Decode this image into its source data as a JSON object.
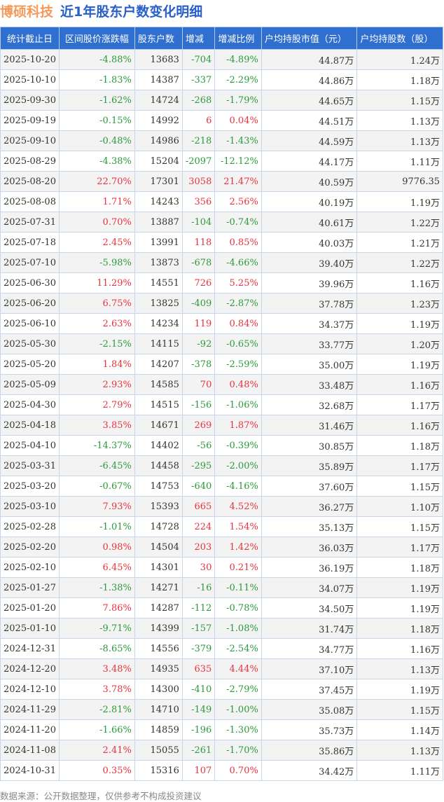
{
  "title": {
    "company": "博硕科技",
    "subtitle": "近1年股东户数变化明细"
  },
  "colors": {
    "positive": "#e8323c",
    "negative": "#2a9a3a",
    "header": "#2f6fd0",
    "company": "#f39a5a",
    "subtitle": "#2860c8"
  },
  "columns": [
    "统计截止日",
    "区间股价涨跌幅",
    "股东户数",
    "增减",
    "增减比例",
    "户均持股市值（元）",
    "户均持股数（股）"
  ],
  "rows": [
    [
      "2025-10-20",
      "-4.88%",
      "13683",
      "-704",
      "-4.89%",
      "44.87万",
      "1.24万"
    ],
    [
      "2025-10-10",
      "-1.83%",
      "14387",
      "-337",
      "-2.29%",
      "44.86万",
      "1.18万"
    ],
    [
      "2025-09-30",
      "-1.62%",
      "14724",
      "-268",
      "-1.79%",
      "44.65万",
      "1.15万"
    ],
    [
      "2025-09-19",
      "-0.15%",
      "14992",
      "6",
      "0.04%",
      "44.51万",
      "1.13万"
    ],
    [
      "2025-09-10",
      "-0.48%",
      "14986",
      "-218",
      "-1.43%",
      "44.59万",
      "1.13万"
    ],
    [
      "2025-08-29",
      "-4.38%",
      "15204",
      "-2097",
      "-12.12%",
      "44.17万",
      "1.11万"
    ],
    [
      "2025-08-20",
      "22.70%",
      "17301",
      "3058",
      "21.47%",
      "40.59万",
      "9776.35"
    ],
    [
      "2025-08-08",
      "1.71%",
      "14243",
      "356",
      "2.56%",
      "40.19万",
      "1.19万"
    ],
    [
      "2025-07-31",
      "0.70%",
      "13887",
      "-104",
      "-0.74%",
      "40.61万",
      "1.22万"
    ],
    [
      "2025-07-18",
      "2.45%",
      "13991",
      "118",
      "0.85%",
      "40.03万",
      "1.21万"
    ],
    [
      "2025-07-10",
      "-5.98%",
      "13873",
      "-678",
      "-4.66%",
      "39.40万",
      "1.22万"
    ],
    [
      "2025-06-30",
      "11.29%",
      "14551",
      "726",
      "5.25%",
      "39.96万",
      "1.16万"
    ],
    [
      "2025-06-20",
      "6.75%",
      "13825",
      "-409",
      "-2.87%",
      "37.78万",
      "1.23万"
    ],
    [
      "2025-06-10",
      "2.63%",
      "14234",
      "119",
      "0.84%",
      "34.37万",
      "1.19万"
    ],
    [
      "2025-05-30",
      "-2.15%",
      "14115",
      "-92",
      "-0.65%",
      "33.77万",
      "1.20万"
    ],
    [
      "2025-05-20",
      "1.84%",
      "14207",
      "-378",
      "-2.59%",
      "35.00万",
      "1.19万"
    ],
    [
      "2025-05-09",
      "2.93%",
      "14585",
      "70",
      "0.48%",
      "33.48万",
      "1.16万"
    ],
    [
      "2025-04-30",
      "2.79%",
      "14515",
      "-156",
      "-1.06%",
      "32.68万",
      "1.17万"
    ],
    [
      "2025-04-18",
      "3.85%",
      "14671",
      "269",
      "1.87%",
      "31.46万",
      "1.16万"
    ],
    [
      "2025-04-10",
      "-14.37%",
      "14402",
      "-56",
      "-0.39%",
      "30.85万",
      "1.18万"
    ],
    [
      "2025-03-31",
      "-6.45%",
      "14458",
      "-295",
      "-2.00%",
      "35.89万",
      "1.17万"
    ],
    [
      "2025-03-20",
      "-0.67%",
      "14753",
      "-640",
      "-4.16%",
      "37.60万",
      "1.15万"
    ],
    [
      "2025-03-10",
      "7.93%",
      "15393",
      "665",
      "4.52%",
      "36.27万",
      "1.10万"
    ],
    [
      "2025-02-28",
      "-1.01%",
      "14728",
      "224",
      "1.54%",
      "35.13万",
      "1.15万"
    ],
    [
      "2025-02-20",
      "0.98%",
      "14504",
      "203",
      "1.42%",
      "36.03万",
      "1.17万"
    ],
    [
      "2025-02-10",
      "6.45%",
      "14301",
      "30",
      "0.21%",
      "36.19万",
      "1.18万"
    ],
    [
      "2025-01-27",
      "-1.38%",
      "14271",
      "-16",
      "-0.11%",
      "34.07万",
      "1.19万"
    ],
    [
      "2025-01-20",
      "7.86%",
      "14287",
      "-112",
      "-0.78%",
      "34.50万",
      "1.19万"
    ],
    [
      "2025-01-10",
      "-9.71%",
      "14399",
      "-157",
      "-1.08%",
      "31.74万",
      "1.18万"
    ],
    [
      "2024-12-31",
      "-8.65%",
      "14556",
      "-379",
      "-2.54%",
      "34.77万",
      "1.16万"
    ],
    [
      "2024-12-20",
      "3.48%",
      "14935",
      "635",
      "4.44%",
      "37.10万",
      "1.13万"
    ],
    [
      "2024-12-10",
      "3.78%",
      "14300",
      "-410",
      "-2.79%",
      "37.45万",
      "1.19万"
    ],
    [
      "2024-11-29",
      "-2.81%",
      "14710",
      "-149",
      "-1.00%",
      "35.08万",
      "1.15万"
    ],
    [
      "2024-11-20",
      "-1.66%",
      "14859",
      "-196",
      "-1.30%",
      "35.73万",
      "1.14万"
    ],
    [
      "2024-11-08",
      "2.41%",
      "15055",
      "-261",
      "-1.70%",
      "35.86万",
      "1.13万"
    ],
    [
      "2024-10-31",
      "0.35%",
      "15316",
      "107",
      "0.70%",
      "34.42万",
      "1.11万"
    ]
  ],
  "footer": "数据来源：公开数据整理，仅供参考不构成投资建议"
}
